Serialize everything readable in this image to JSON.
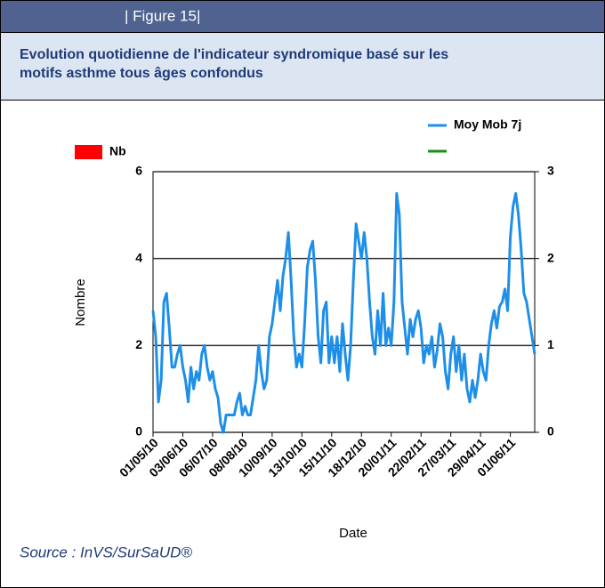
{
  "header": {
    "label": "| Figure 15|"
  },
  "chart_data": {
    "type": "line",
    "title": "Evolution quotidienne de l'indicateur syndromique basé sur les motifs asthme tous âges confondus",
    "x_label": "Date",
    "y_label": "Nombre",
    "categories": [
      "01/05/10",
      null,
      null,
      null,
      null,
      null,
      null,
      null,
      null,
      null,
      null,
      "03/06/10",
      null,
      null,
      null,
      null,
      null,
      null,
      null,
      null,
      null,
      null,
      "06/07/10",
      null,
      null,
      null,
      null,
      null,
      null,
      null,
      null,
      null,
      null,
      "08/08/10",
      null,
      null,
      null,
      null,
      null,
      null,
      null,
      null,
      null,
      null,
      "10/09/10",
      null,
      null,
      null,
      null,
      null,
      null,
      null,
      null,
      null,
      null,
      "13/10/10",
      null,
      null,
      null,
      null,
      null,
      null,
      null,
      null,
      null,
      null,
      "15/11/10",
      null,
      null,
      null,
      null,
      null,
      null,
      null,
      null,
      null,
      null,
      "18/12/10",
      null,
      null,
      null,
      null,
      null,
      null,
      null,
      null,
      null,
      null,
      "20/01/11",
      null,
      null,
      null,
      null,
      null,
      null,
      null,
      null,
      null,
      null,
      "22/02/11",
      null,
      null,
      null,
      null,
      null,
      null,
      null,
      null,
      null,
      null,
      "27/03/11",
      null,
      null,
      null,
      null,
      null,
      null,
      null,
      null,
      null,
      null,
      "29/04/11",
      null,
      null,
      null,
      null,
      null,
      null,
      null,
      null,
      null,
      null,
      "01/06/11",
      null,
      null,
      null,
      null,
      null,
      null,
      null,
      null,
      null
    ],
    "series": [
      {
        "name": "Moy Mob 7j",
        "color": "#1e8fe8",
        "values": [
          2.8,
          2.2,
          0.7,
          1.2,
          3.0,
          3.2,
          2.4,
          1.5,
          1.5,
          1.8,
          2.0,
          1.5,
          1.2,
          0.7,
          1.5,
          1.0,
          1.4,
          1.2,
          1.8,
          2.0,
          1.5,
          1.2,
          1.4,
          1.0,
          0.8,
          0.2,
          0.0,
          0.4,
          0.4,
          0.4,
          0.4,
          0.7,
          0.9,
          0.4,
          0.6,
          0.4,
          0.4,
          0.8,
          1.2,
          2.0,
          1.4,
          1.0,
          1.2,
          2.2,
          2.5,
          3.0,
          3.5,
          2.8,
          3.6,
          4.0,
          4.6,
          3.5,
          2.2,
          1.5,
          1.8,
          1.5,
          2.5,
          3.8,
          4.2,
          4.4,
          3.5,
          2.2,
          1.6,
          2.8,
          3.0,
          1.6,
          2.2,
          1.6,
          2.2,
          1.4,
          2.5,
          1.8,
          1.2,
          2.0,
          3.5,
          4.8,
          4.4,
          4.0,
          4.6,
          4.0,
          3.0,
          2.2,
          1.8,
          2.8,
          2.0,
          3.2,
          2.0,
          2.4,
          2.0,
          3.0,
          5.5,
          5.0,
          3.0,
          2.4,
          1.8,
          2.6,
          2.2,
          2.6,
          2.8,
          2.4,
          1.6,
          2.0,
          1.8,
          2.2,
          1.5,
          1.9,
          2.5,
          2.2,
          1.4,
          1.0,
          1.8,
          2.2,
          1.4,
          2.0,
          1.2,
          1.8,
          1.0,
          0.7,
          1.2,
          0.8,
          1.2,
          1.8,
          1.4,
          1.2,
          2.0,
          2.5,
          2.8,
          2.4,
          2.9,
          3.0,
          3.3,
          2.8,
          4.5,
          5.2,
          5.5,
          5.0,
          4.2,
          3.2,
          3.0,
          2.6,
          2.2,
          1.8
        ]
      }
    ],
    "legend_extra": [
      {
        "name": "Nb",
        "color": "#ff0000"
      }
    ],
    "ylim": [
      0,
      6
    ],
    "yticks": [
      0,
      2,
      4,
      6
    ],
    "y2lim": [
      0,
      3
    ],
    "y2ticks": [
      0,
      1,
      2,
      3
    ],
    "grid": true
  },
  "source": "Source : InVS/SurSaUD®"
}
